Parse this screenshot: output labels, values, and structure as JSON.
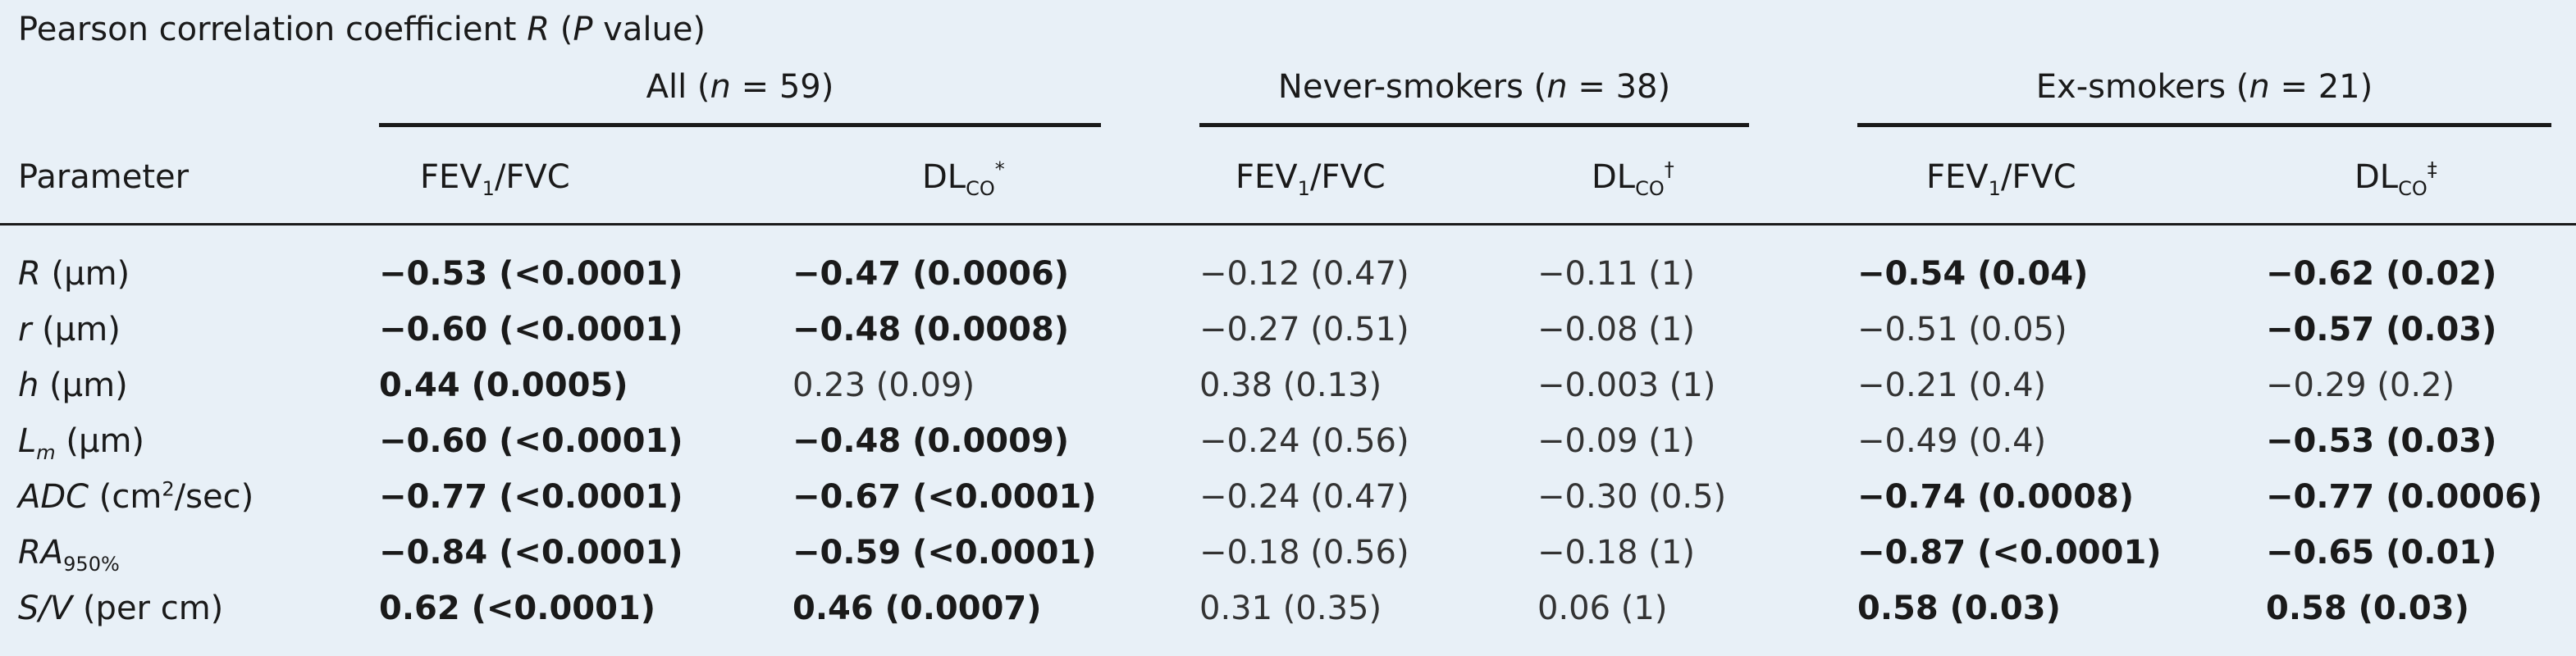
{
  "caption": {
    "text_before": "Pearson correlation coefficient ",
    "R": "R",
    "text_paren_open": " (",
    "P": "P",
    "text_after": " value)"
  },
  "groups": [
    {
      "label_before": "All (",
      "n": "n",
      "label_after": " = 59)"
    },
    {
      "label_before": "Never-smokers (",
      "n": "n",
      "label_after": " = 38)"
    },
    {
      "label_before": "Ex-smokers (",
      "n": "n",
      "label_after": " = 21)"
    }
  ],
  "columns": {
    "parameter": "Parameter",
    "fev": {
      "base": "FEV",
      "sub": "1",
      "rest": "/FVC"
    },
    "dlco": {
      "base": "DL",
      "sub": "CO"
    },
    "dlco_marks": [
      "*",
      "†",
      "‡"
    ]
  },
  "rows": [
    {
      "param": {
        "italic": "R",
        "rest": " (μm)"
      },
      "cells": [
        {
          "text": "−0.53 (<0.0001)",
          "bold": true
        },
        {
          "text": "−0.47 (0.0006)",
          "bold": true
        },
        {
          "text": "−0.12 (0.47)",
          "bold": false
        },
        {
          "text": "−0.11 (1)",
          "bold": false
        },
        {
          "text": "−0.54 (0.04)",
          "bold": true
        },
        {
          "text": "−0.62 (0.02)",
          "bold": true
        }
      ]
    },
    {
      "param": {
        "italic": "r",
        "rest": " (μm)"
      },
      "cells": [
        {
          "text": "−0.60 (<0.0001)",
          "bold": true
        },
        {
          "text": "−0.48 (0.0008)",
          "bold": true
        },
        {
          "text": "−0.27 (0.51)",
          "bold": false
        },
        {
          "text": "−0.08 (1)",
          "bold": false
        },
        {
          "text": "−0.51 (0.05)",
          "bold": false
        },
        {
          "text": "−0.57 (0.03)",
          "bold": true
        }
      ]
    },
    {
      "param": {
        "italic": "h",
        "rest": " (μm)"
      },
      "cells": [
        {
          "text": "0.44 (0.0005)",
          "bold": true
        },
        {
          "text": "0.23 (0.09)",
          "bold": false
        },
        {
          "text": "0.38 (0.13)",
          "bold": false
        },
        {
          "text": "−0.003 (1)",
          "bold": false
        },
        {
          "text": "−0.21 (0.4)",
          "bold": false
        },
        {
          "text": "−0.29 (0.2)",
          "bold": false
        }
      ]
    },
    {
      "param": {
        "italic": "L",
        "sub": "m",
        "rest": " (μm)"
      },
      "cells": [
        {
          "text": "−0.60 (<0.0001)",
          "bold": true
        },
        {
          "text": "−0.48 (0.0009)",
          "bold": true
        },
        {
          "text": "−0.24 (0.56)",
          "bold": false
        },
        {
          "text": "−0.09 (1)",
          "bold": false
        },
        {
          "text": "−0.49 (0.4)",
          "bold": false
        },
        {
          "text": "−0.53 (0.03)",
          "bold": true
        }
      ]
    },
    {
      "param": {
        "italic": "ADC",
        "rest": " (cm",
        "sup": "2",
        "rest2": "/sec)"
      },
      "cells": [
        {
          "text": "−0.77 (<0.0001)",
          "bold": true
        },
        {
          "text": "−0.67 (<0.0001)",
          "bold": true
        },
        {
          "text": "−0.24 (0.47)",
          "bold": false
        },
        {
          "text": "−0.30 (0.5)",
          "bold": false
        },
        {
          "text": "−0.74 (0.0008)",
          "bold": true
        },
        {
          "text": "−0.77 (0.0006)",
          "bold": true
        }
      ]
    },
    {
      "param": {
        "italic": "RA",
        "sub": "950%"
      },
      "cells": [
        {
          "text": "−0.84 (<0.0001)",
          "bold": true
        },
        {
          "text": "−0.59 (<0.0001)",
          "bold": true
        },
        {
          "text": "−0.18 (0.56)",
          "bold": false
        },
        {
          "text": "−0.18 (1)",
          "bold": false
        },
        {
          "text": "−0.87 (<0.0001)",
          "bold": true
        },
        {
          "text": "−0.65 (0.01)",
          "bold": true
        }
      ]
    },
    {
      "param": {
        "italic": "S/V",
        "rest": " (per cm)"
      },
      "cells": [
        {
          "text": "0.62 (<0.0001)",
          "bold": true
        },
        {
          "text": "0.46 (0.0007)",
          "bold": true
        },
        {
          "text": "0.31 (0.35)",
          "bold": false
        },
        {
          "text": "0.06 (1)",
          "bold": false
        },
        {
          "text": "0.58 (0.03)",
          "bold": true
        },
        {
          "text": "0.58 (0.03)",
          "bold": true
        }
      ]
    }
  ]
}
